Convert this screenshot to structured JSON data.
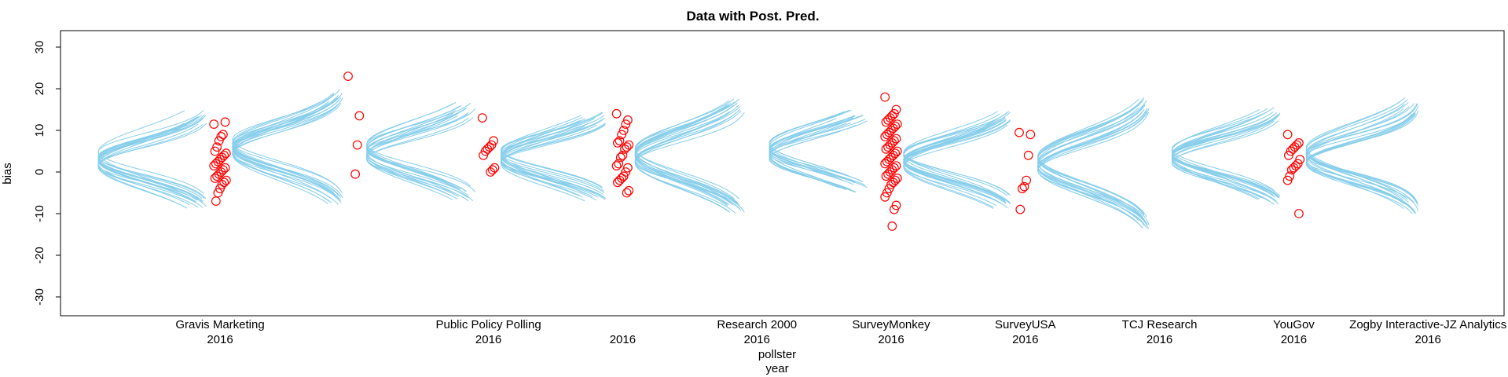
{
  "chart_data": {
    "type": "scatter",
    "title": "Data with Post. Pred.",
    "ylabel": "bias",
    "xlabel_lines": [
      "pollster",
      "year"
    ],
    "ylim": [
      -35,
      35
    ],
    "yticks": [
      -30,
      -20,
      -10,
      0,
      10,
      20,
      30
    ],
    "groups": [
      {
        "pollster": "Gravis Marketing",
        "year": "2016",
        "x": 1,
        "curve_center": 3,
        "curve_spread": 10,
        "curve_mix": 0.0,
        "points": [
          11.5,
          12,
          9,
          8.5,
          7.5,
          6,
          5,
          4.5,
          4,
          3.5,
          3,
          2.5,
          2,
          1.5,
          1,
          0.5,
          0,
          -0.5,
          -1,
          -1.5,
          -2,
          -2.5,
          -3,
          -4,
          -5,
          -7
        ]
      },
      {
        "pollster": "",
        "year": "",
        "x": 2,
        "curve_center": 6,
        "curve_spread": 12,
        "curve_mix": 0.2,
        "points": [
          23,
          13.5,
          6.5,
          -0.5
        ]
      },
      {
        "pollster": "Public Policy Polling",
        "year": "2016",
        "x": 3,
        "curve_center": 5,
        "curve_spread": 10,
        "curve_mix": 0.0,
        "points": [
          13,
          7.5,
          6.5,
          6,
          5.5,
          5,
          4,
          1,
          0.5,
          0
        ]
      },
      {
        "pollster": "",
        "year": "2016",
        "x": 4,
        "curve_center": 4,
        "curve_spread": 9,
        "curve_mix": 0.0,
        "points": [
          14,
          12.5,
          11.5,
          10,
          9,
          7.5,
          7,
          6.5,
          6,
          5.5,
          4,
          3.5,
          2,
          1.5,
          1,
          0,
          -1,
          -1.5,
          -2,
          -2.5,
          -4.5,
          -5
        ]
      },
      {
        "pollster": "Research 2000",
        "year": "2016",
        "x": 5,
        "curve_center": 4,
        "curve_spread": 12,
        "curve_mix": 0.3,
        "points": []
      },
      {
        "pollster": "SurveyMonkey",
        "year": "2016",
        "x": 6,
        "curve_center": 5,
        "curve_spread": 8,
        "curve_mix": 0.0,
        "points": [
          18,
          15,
          14,
          13.5,
          13,
          12.5,
          12,
          11.5,
          11,
          10.5,
          10,
          9.5,
          9,
          8.5,
          8,
          7.5,
          7,
          6.5,
          6,
          5.5,
          5,
          4.5,
          4,
          3.5,
          3,
          2.5,
          2,
          1.5,
          1,
          0.5,
          0,
          -0.5,
          -1,
          -1.5,
          -2,
          -2.5,
          -3,
          -4,
          -5,
          -6,
          -8,
          -9,
          -13
        ]
      },
      {
        "pollster": "SurveyUSA",
        "year": "2016",
        "x": 7,
        "curve_center": 3,
        "curve_spread": 10,
        "curve_mix": 0.1,
        "points": [
          9.5,
          9,
          4,
          -2,
          -3.5,
          -4,
          -9
        ]
      },
      {
        "pollster": "TCJ Research",
        "year": "2016",
        "x": 8,
        "curve_center": 2,
        "curve_spread": 14,
        "curve_mix": 0.4,
        "points": []
      },
      {
        "pollster": "YouGov",
        "year": "2016",
        "x": 9,
        "curve_center": 4,
        "curve_spread": 10,
        "curve_mix": 0.0,
        "points": [
          9,
          7,
          6.5,
          6,
          5.5,
          5,
          4,
          3,
          2,
          1.5,
          1,
          0.5,
          -1,
          -2,
          -10
        ]
      },
      {
        "pollster": "Zogby Interactive-JZ Analytics",
        "year": "2016",
        "x": 10,
        "curve_center": 4,
        "curve_spread": 12,
        "curve_mix": 0.1,
        "points": []
      }
    ],
    "curve_color": "#87CEEB",
    "point_color": "#FF0000",
    "grid": false,
    "legend": "none"
  }
}
